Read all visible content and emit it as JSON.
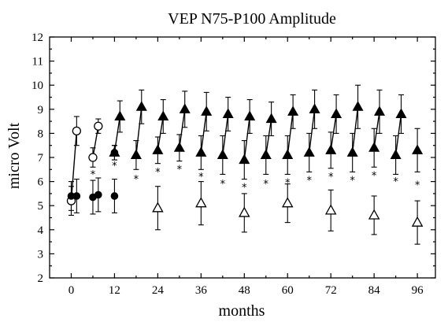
{
  "chart_data": {
    "type": "scatter",
    "title": "VEP N75-P100 Amplitude",
    "xlabel": "months",
    "ylabel": "micro Volt",
    "xlim": [
      -6,
      101
    ],
    "ylim": [
      2,
      12
    ],
    "xticks": [
      0,
      12,
      24,
      36,
      48,
      60,
      72,
      84,
      96
    ],
    "yticks": [
      2,
      3,
      4,
      5,
      6,
      7,
      8,
      9,
      10,
      11,
      12
    ],
    "grid": false,
    "legend": "none",
    "series": [
      {
        "marker": "circle-open",
        "points": [
          {
            "x": 0,
            "y": 5.2,
            "err": 0.6
          },
          {
            "x": 1.5,
            "y": 8.1,
            "err": 0.6
          },
          {
            "x": 6,
            "y": 7.0,
            "err": 0.4
          },
          {
            "x": 7.5,
            "y": 8.3,
            "err": 0.3
          }
        ],
        "connect": [
          [
            0,
            1
          ],
          [
            2,
            3
          ]
        ]
      },
      {
        "marker": "circle-filled",
        "points": [
          {
            "x": 0,
            "y": 5.4,
            "err": 0.6
          },
          {
            "x": 1.5,
            "y": 5.4,
            "err": 0.7
          },
          {
            "x": 6,
            "y": 5.35,
            "err": 0.7
          },
          {
            "x": 7.5,
            "y": 5.45,
            "err": 0.7
          },
          {
            "x": 12,
            "y": 5.4,
            "err": 0.7
          },
          {
            "x": 12,
            "y": 7.2,
            "err": 0.3
          }
        ],
        "connect": []
      },
      {
        "marker": "triangle-filled",
        "points": [
          {
            "x": 12,
            "y": 7.2,
            "err": 0.3
          },
          {
            "x": 13.5,
            "y": 8.7,
            "err": 0.65
          },
          {
            "x": 18,
            "y": 7.1,
            "err": 0.6
          },
          {
            "x": 19.5,
            "y": 9.1,
            "err": 0.7
          },
          {
            "x": 24,
            "y": 7.3,
            "err": 0.55
          },
          {
            "x": 25.5,
            "y": 8.7,
            "err": 0.7
          },
          {
            "x": 30,
            "y": 7.4,
            "err": 0.55
          },
          {
            "x": 31.5,
            "y": 9.0,
            "err": 0.75
          },
          {
            "x": 36,
            "y": 7.2,
            "err": 0.7
          },
          {
            "x": 37.5,
            "y": 8.9,
            "err": 0.8
          },
          {
            "x": 42,
            "y": 7.1,
            "err": 0.8
          },
          {
            "x": 43.5,
            "y": 8.8,
            "err": 0.7
          },
          {
            "x": 48,
            "y": 6.9,
            "err": 0.8
          },
          {
            "x": 49.5,
            "y": 8.7,
            "err": 0.7
          },
          {
            "x": 54,
            "y": 7.1,
            "err": 0.8
          },
          {
            "x": 55.5,
            "y": 8.6,
            "err": 0.7
          },
          {
            "x": 60,
            "y": 7.1,
            "err": 0.8
          },
          {
            "x": 61.5,
            "y": 8.9,
            "err": 0.7
          },
          {
            "x": 66,
            "y": 7.2,
            "err": 0.8
          },
          {
            "x": 67.5,
            "y": 9.0,
            "err": 0.8
          },
          {
            "x": 72,
            "y": 7.3,
            "err": 0.75
          },
          {
            "x": 73.5,
            "y": 8.8,
            "err": 0.8
          },
          {
            "x": 78,
            "y": 7.2,
            "err": 0.8
          },
          {
            "x": 79.5,
            "y": 9.1,
            "err": 0.9
          },
          {
            "x": 84,
            "y": 7.4,
            "err": 0.8
          },
          {
            "x": 85.5,
            "y": 8.9,
            "err": 0.9
          },
          {
            "x": 90,
            "y": 7.1,
            "err": 0.8
          },
          {
            "x": 91.5,
            "y": 8.8,
            "err": 0.8
          },
          {
            "x": 96,
            "y": 7.3,
            "err": 0.9
          }
        ],
        "connect": [
          [
            0,
            1
          ],
          [
            2,
            3
          ],
          [
            4,
            5
          ],
          [
            6,
            7
          ],
          [
            8,
            9
          ],
          [
            10,
            11
          ],
          [
            12,
            13
          ],
          [
            14,
            15
          ],
          [
            16,
            17
          ],
          [
            18,
            19
          ],
          [
            20,
            21
          ],
          [
            22,
            23
          ],
          [
            24,
            25
          ],
          [
            26,
            27
          ]
        ]
      },
      {
        "marker": "triangle-open",
        "points": [
          {
            "x": 24,
            "y": 4.9,
            "err": 0.9
          },
          {
            "x": 36,
            "y": 5.1,
            "err": 0.9
          },
          {
            "x": 48,
            "y": 4.7,
            "err": 0.8
          },
          {
            "x": 60,
            "y": 5.1,
            "err": 0.8
          },
          {
            "x": 72,
            "y": 4.8,
            "err": 0.85
          },
          {
            "x": 84,
            "y": 4.6,
            "err": 0.8
          },
          {
            "x": 96,
            "y": 4.3,
            "err": 0.9
          }
        ],
        "connect": []
      }
    ],
    "annotations": [
      {
        "text": "*",
        "x": 6,
        "y": 6.45
      },
      {
        "text": "*",
        "x": 12,
        "y": 6.8
      },
      {
        "text": "*",
        "x": 18,
        "y": 6.25
      },
      {
        "text": "*",
        "x": 24,
        "y": 6.55
      },
      {
        "text": "*",
        "x": 30,
        "y": 6.65
      },
      {
        "text": "*",
        "x": 36,
        "y": 6.35
      },
      {
        "text": "*",
        "x": 42,
        "y": 6.05
      },
      {
        "text": "*",
        "x": 48,
        "y": 5.9
      },
      {
        "text": "*",
        "x": 54,
        "y": 6.05
      },
      {
        "text": "*",
        "x": 60,
        "y": 6.1
      },
      {
        "text": "*",
        "x": 66,
        "y": 6.2
      },
      {
        "text": "*",
        "x": 72,
        "y": 6.35
      },
      {
        "text": "*",
        "x": 78,
        "y": 6.2
      },
      {
        "text": "*",
        "x": 84,
        "y": 6.4
      },
      {
        "text": "*",
        "x": 90,
        "y": 6.15
      },
      {
        "text": "*",
        "x": 96,
        "y": 6.0
      }
    ]
  }
}
